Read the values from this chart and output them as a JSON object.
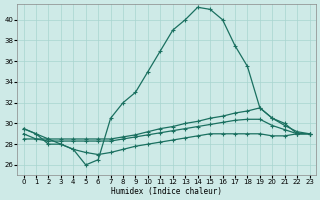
{
  "xlabel": "Humidex (Indice chaleur)",
  "xlim": [
    -0.5,
    23.5
  ],
  "ylim": [
    25,
    41.5
  ],
  "yticks": [
    26,
    28,
    30,
    32,
    34,
    36,
    38,
    40
  ],
  "xticks": [
    0,
    1,
    2,
    3,
    4,
    5,
    6,
    7,
    8,
    9,
    10,
    11,
    12,
    13,
    14,
    15,
    16,
    17,
    18,
    19,
    20,
    21,
    22,
    23
  ],
  "background_color": "#ceeae7",
  "grid_color": "#a8d5d0",
  "line_color": "#1a7060",
  "line1_x": [
    0,
    1,
    2,
    3,
    4,
    5,
    6,
    7,
    8,
    9,
    10,
    11,
    12,
    13,
    14,
    15,
    16,
    17,
    18,
    19,
    20,
    21,
    22,
    23
  ],
  "line1_y": [
    29.5,
    29.0,
    28.0,
    28.0,
    27.5,
    26.0,
    26.5,
    30.5,
    32.0,
    33.0,
    35.0,
    37.0,
    39.0,
    40.0,
    41.2,
    41.0,
    40.0,
    37.5,
    35.5,
    31.5,
    30.5,
    30.0,
    29.0,
    29.0
  ],
  "line2_x": [
    0,
    1,
    2,
    3,
    4,
    5,
    6,
    7,
    8,
    9,
    10,
    11,
    12,
    13,
    14,
    15,
    16,
    17,
    18,
    19,
    20,
    21,
    22,
    23
  ],
  "line2_y": [
    29.5,
    29.0,
    28.5,
    28.5,
    28.5,
    28.5,
    28.5,
    28.5,
    28.7,
    28.9,
    29.2,
    29.5,
    29.7,
    30.0,
    30.2,
    30.5,
    30.7,
    31.0,
    31.2,
    31.5,
    30.5,
    29.8,
    29.2,
    29.0
  ],
  "line3_x": [
    0,
    1,
    2,
    3,
    4,
    5,
    6,
    7,
    8,
    9,
    10,
    11,
    12,
    13,
    14,
    15,
    16,
    17,
    18,
    19,
    20,
    21,
    22,
    23
  ],
  "line3_y": [
    29.0,
    28.5,
    28.3,
    28.3,
    28.3,
    28.3,
    28.3,
    28.3,
    28.5,
    28.7,
    28.9,
    29.1,
    29.3,
    29.5,
    29.7,
    29.9,
    30.1,
    30.3,
    30.4,
    30.4,
    29.8,
    29.4,
    29.0,
    29.0
  ],
  "line4_x": [
    0,
    1,
    2,
    3,
    4,
    5,
    6,
    7,
    8,
    9,
    10,
    11,
    12,
    13,
    14,
    15,
    16,
    17,
    18,
    19,
    20,
    21,
    22,
    23
  ],
  "line4_y": [
    28.5,
    28.5,
    28.5,
    28.0,
    27.5,
    27.2,
    27.0,
    27.2,
    27.5,
    27.8,
    28.0,
    28.2,
    28.4,
    28.6,
    28.8,
    29.0,
    29.0,
    29.0,
    29.0,
    29.0,
    28.8,
    28.8,
    29.0,
    29.0
  ]
}
